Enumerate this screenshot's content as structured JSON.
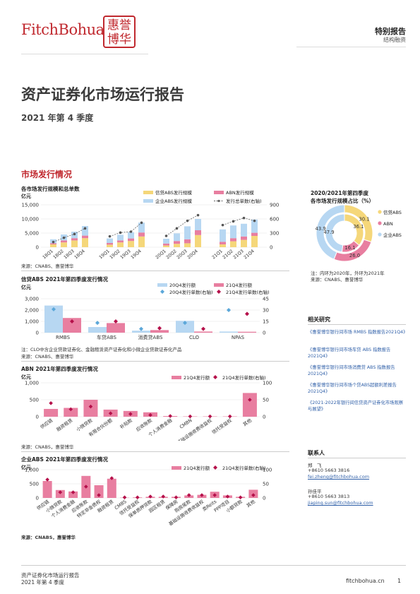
{
  "header": {
    "logo_text": "FitchBohua",
    "seal_text": "惠誉博华",
    "report_type": "特别报告",
    "report_category": "结构融资"
  },
  "title": "资产证券化市场运行报告",
  "subtitle": "2021 年第 4 季度",
  "section_title": "市场发行情况",
  "chart1": {
    "title": "各市场发行规模和总单数",
    "unit": "亿元",
    "source": "来源：CNABS、惠誉博华",
    "legend": [
      "信贷ABS发行规模",
      "ABN发行规模",
      "企业ABS发行规模",
      "发行总单数(右轴)"
    ],
    "colors": {
      "credit": "#f5d77a",
      "abn": "#e87ea0",
      "corp": "#b7d7f2",
      "line": "#666666"
    }
  },
  "chart_data": [
    {
      "type": "bar",
      "stacked": true,
      "categories": [
        "18Q1",
        "18Q2",
        "18Q3",
        "18Q4",
        "19Q1",
        "19Q2",
        "19Q3",
        "19Q4",
        "20Q1",
        "20Q2",
        "20Q3",
        "20Q4",
        "21Q1",
        "21Q2",
        "21Q3",
        "21Q4"
      ],
      "groups": [
        [
          "18Q1",
          "18Q2",
          "18Q3",
          "18Q4"
        ],
        [
          "19Q1",
          "19Q2",
          "19Q3",
          "19Q4"
        ],
        [
          "20Q1",
          "20Q2",
          "20Q3",
          "20Q4"
        ],
        [
          "21Q1",
          "21Q2",
          "21Q3",
          "21Q4"
        ]
      ],
      "series": [
        {
          "name": "信贷ABS发行规模",
          "values": [
            1000,
            1700,
            2400,
            3200,
            900,
            1700,
            2200,
            3800,
            600,
            1200,
            1400,
            4300,
            1000,
            2100,
            2600,
            4000
          ]
        },
        {
          "name": "ABN发行规模",
          "values": [
            400,
            700,
            800,
            900,
            600,
            700,
            900,
            1400,
            700,
            1000,
            1400,
            1700,
            900,
            1100,
            1200,
            1100
          ]
        },
        {
          "name": "企业ABS发行规模",
          "values": [
            1400,
            2100,
            2300,
            3400,
            1600,
            2000,
            2200,
            3500,
            1700,
            2700,
            4600,
            4000,
            4400,
            4500,
            4500,
            4700
          ]
        }
      ],
      "line": {
        "name": "发行总单数(右轴)",
        "values": [
          110,
          200,
          280,
          400,
          230,
          310,
          330,
          520,
          240,
          400,
          560,
          680,
          470,
          550,
          620,
          560
        ]
      },
      "ylim": [
        0,
        15000
      ],
      "yticks": [
        "0",
        "5,000",
        "10,000",
        "15,000"
      ],
      "y2lim": [
        0,
        900
      ],
      "y2ticks": [
        "0",
        "300",
        "600",
        "900"
      ]
    },
    {
      "type": "pie",
      "subtype": "double-donut",
      "title": "2020/2021年第四季度各市场发行规模占比（%）",
      "outer_label": "2021",
      "categories": [
        "信贷ABS",
        "ABN",
        "企业ABS"
      ],
      "outer": [
        30.1,
        26.0,
        43.9
      ],
      "inner": [
        36.1,
        16.1,
        47.9
      ]
    },
    {
      "type": "bar",
      "title": "信贷ABS 2021年第四季度发行情况",
      "categories": [
        "RMBS",
        "车贷ABS",
        "消费贷ABS",
        "CLO",
        "NPAS"
      ],
      "series": [
        {
          "name": "20Q4发行额",
          "values": [
            2400,
            500,
            180,
            1050,
            100
          ]
        },
        {
          "name": "21Q4发行额",
          "values": [
            1300,
            850,
            230,
            100,
            80
          ]
        }
      ],
      "points": [
        {
          "name": "20Q4发行单数(右轴)",
          "values": [
            31,
            13,
            5,
            13,
            30
          ]
        },
        {
          "name": "21Q4发行单数(右轴)",
          "values": [
            15,
            15,
            6,
            5,
            25
          ]
        }
      ],
      "ylim": [
        0,
        3000
      ],
      "yticks": [
        "0",
        "1,000",
        "2,000",
        "3,000"
      ],
      "y2lim": [
        0,
        45
      ],
      "y2ticks": [
        "0",
        "15",
        "30",
        "45"
      ]
    },
    {
      "type": "bar",
      "title": "ABN 2021年第四季度发行情况",
      "categories": [
        "供应链",
        "融资租赁",
        "小微贷款",
        "有限合伙份额",
        "补贴款",
        "应收账款",
        "个人消费金融",
        "CMBN",
        "基础设施收费收益权",
        "信托受益权",
        "其他"
      ],
      "series": [
        {
          "name": "21Q4发行额",
          "values": [
            230,
            260,
            500,
            210,
            170,
            130,
            20,
            10,
            10,
            10,
            700
          ]
        }
      ],
      "points": [
        {
          "name": "21Q4发行单数(右轴)",
          "values": [
            40,
            22,
            30,
            10,
            8,
            5,
            2,
            1,
            1,
            1,
            50
          ]
        }
      ],
      "ylim": [
        0,
        1000
      ],
      "yticks": [
        "0",
        "500",
        "1,000"
      ],
      "y2lim": [
        0,
        100
      ],
      "y2ticks": [
        "0",
        "50",
        "100"
      ]
    },
    {
      "type": "bar",
      "title": "企业ABS 2021年第四季度发行情况",
      "categories": [
        "供应链",
        "小微贷款",
        "个人消费金融",
        "应收账款",
        "特定非金债权",
        "融资租赁",
        "CMBS",
        "信托受益权",
        "保单质押贷款",
        "园区租赁",
        "保障房",
        "购房尾款",
        "基础设施收费收益权",
        "类Reits",
        "PPP项目",
        "小额贷款",
        "其他"
      ],
      "series": [
        {
          "name": "21Q4发行额",
          "values": [
            600,
            280,
            230,
            780,
            450,
            680,
            10,
            20,
            40,
            40,
            40,
            90,
            110,
            220,
            90,
            40,
            290
          ]
        }
      ],
      "points": [
        {
          "name": "21Q4发行单数(右轴)",
          "values": [
            65,
            20,
            20,
            40,
            10,
            70,
            2,
            2,
            5,
            5,
            2,
            10,
            10,
            10,
            5,
            2,
            10
          ]
        }
      ],
      "ylim": [
        0,
        1000
      ],
      "yticks": [
        "0",
        "500",
        "1,000"
      ],
      "y2lim": [
        0,
        100
      ],
      "y2ticks": [
        "0",
        "50",
        "100"
      ]
    }
  ],
  "donut": {
    "title": "2020/2021年第四季度\n各市场发行规模占比（%）",
    "legend": [
      "信贷ABS",
      "ABN",
      "企业ABS"
    ],
    "outer_labels": [
      "30.1",
      "26.0",
      "43.9"
    ],
    "inner_labels": [
      "36.1",
      "16.1",
      "47.9"
    ],
    "note": "注：内环为2020年，外环为2021年",
    "source": "来源：CNABS、惠誉博华"
  },
  "chart2": {
    "title": "信贷ABS 2021年第四季度发行情况",
    "unit": "亿元",
    "legend": [
      "20Q4发行额",
      "21Q4发行额",
      "20Q4发行单数(右轴)",
      "21Q4发行单数(右轴)"
    ],
    "note": "注：CLO中含企业贷款证券化、金融租赁资产证券化和小微企业贷款证券化产品",
    "source": "来源：CNABS、惠誉博华"
  },
  "chart3": {
    "title": "ABN 2021年第四季度发行情况",
    "unit": "亿元",
    "legend": [
      "21Q4发行额",
      "21Q4发行单数(右轴)"
    ],
    "source": "来源：CNABS，惠誉博华"
  },
  "chart4": {
    "title": "企业ABS 2021年第四季度发行情况",
    "unit": "亿元",
    "legend": [
      "21Q4发行额",
      "21Q4发行单数(右轴)"
    ],
    "source": "来源：CNABS，惠誉博华"
  },
  "related": {
    "heading": "相关研究",
    "items": [
      "《惠誉博华银行间市场 RMBS 指数报告2021Q4》",
      "《惠誉博华银行间市场车贷 ABS 指数报告2021Q4》",
      "《惠誉博华银行间市场消费贷 ABS 指数报告2021Q4》",
      "《惠誉博华银行间市场个贷ABS超额利差报告2021Q4》",
      "《2021-2022年银行间信贷资产证券化市场观察与展望》"
    ]
  },
  "contacts": {
    "heading": "联系人",
    "people": [
      {
        "name": "郑　飞",
        "tel": "+8610 5663 3816",
        "email": "fei.zheng@fitchbohua.com"
      },
      {
        "name": "孙佳平",
        "tel": "+8610 5663 3813",
        "email": "jiaping.sun@fitchbohua.com"
      }
    ]
  },
  "footer": {
    "line1": "资产证券化市场运行报告",
    "line2": "2021 年第 4 季度",
    "site": "fitchbohua.cn",
    "page": "1"
  }
}
